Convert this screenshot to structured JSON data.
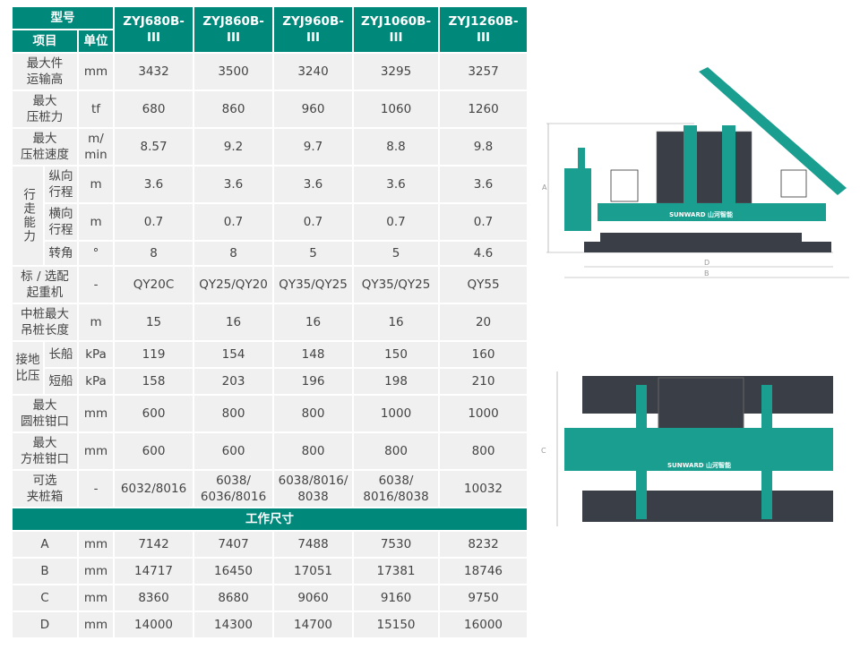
{
  "header": {
    "model_label": "型号",
    "item_label": "项目",
    "unit_label": "单位",
    "models": [
      "ZYJ680B- III",
      "ZYJ860B- III",
      "ZYJ960B- III",
      "ZYJ1060B- III",
      "ZYJ1260B- III"
    ]
  },
  "rows": [
    {
      "label": "最大件\n运输高",
      "unit": "mm",
      "values": [
        "3432",
        "3500",
        "3240",
        "3295",
        "3257"
      ]
    },
    {
      "label": "最大\n压桩力",
      "unit": "tf",
      "values": [
        "680",
        "860",
        "960",
        "1060",
        "1260"
      ]
    },
    {
      "label": "最大\n压桩速度",
      "unit": "m/\nmin",
      "values": [
        "8.57",
        "9.2",
        "9.7",
        "8.8",
        "9.8"
      ]
    }
  ],
  "travel": {
    "group": "行走能力",
    "rows": [
      {
        "label": "纵向\n行程",
        "unit": "m",
        "values": [
          "3.6",
          "3.6",
          "3.6",
          "3.6",
          "3.6"
        ]
      },
      {
        "label": "横向\n行程",
        "unit": "m",
        "values": [
          "0.7",
          "0.7",
          "0.7",
          "0.7",
          "0.7"
        ]
      },
      {
        "label": "转角",
        "unit": "°",
        "values": [
          "8",
          "8",
          "5",
          "5",
          "4.6"
        ]
      }
    ]
  },
  "rows2": [
    {
      "label": "标 / 选配\n起重机",
      "unit": "-",
      "values": [
        "QY20C",
        "QY25/QY20",
        "QY35/QY25",
        "QY35/QY25",
        "QY55"
      ]
    },
    {
      "label": "中桩最大\n吊桩长度",
      "unit": "m",
      "values": [
        "15",
        "16",
        "16",
        "16",
        "20"
      ]
    }
  ],
  "pressure": {
    "group": "接地\n比压",
    "rows": [
      {
        "label": "长船",
        "unit": "kPa",
        "values": [
          "119",
          "154",
          "148",
          "150",
          "160"
        ]
      },
      {
        "label": "短船",
        "unit": "kPa",
        "values": [
          "158",
          "203",
          "196",
          "198",
          "210"
        ]
      }
    ]
  },
  "rows3": [
    {
      "label": "最大\n圆桩钳口",
      "unit": "mm",
      "values": [
        "600",
        "800",
        "800",
        "1000",
        "1000"
      ]
    },
    {
      "label": "最大\n方桩钳口",
      "unit": "mm",
      "values": [
        "600",
        "600",
        "800",
        "800",
        "800"
      ]
    },
    {
      "label": "可选\n夹桩箱",
      "unit": "-",
      "values": [
        "6032/8016",
        "6038/\n6036/8016",
        "6038/8016/\n8038",
        "6038/\n8016/8038",
        "10032"
      ]
    }
  ],
  "dims": {
    "title": "工作尺寸",
    "rows": [
      {
        "label": "A",
        "unit": "mm",
        "values": [
          "7142",
          "7407",
          "7488",
          "7530",
          "8232"
        ]
      },
      {
        "label": "B",
        "unit": "mm",
        "values": [
          "14717",
          "16450",
          "17051",
          "17381",
          "18746"
        ]
      },
      {
        "label": "C",
        "unit": "mm",
        "values": [
          "8360",
          "8680",
          "9060",
          "9160",
          "9750"
        ]
      },
      {
        "label": "D",
        "unit": "mm",
        "values": [
          "14000",
          "14300",
          "14700",
          "15150",
          "16000"
        ]
      }
    ]
  },
  "drawing": {
    "brand": "SUNWARD山河智能",
    "dim_labels": [
      "A",
      "B",
      "C",
      "D"
    ]
  },
  "colors": {
    "header": "#00897b",
    "cell": "#f0f0f0",
    "machine": "#1a9e8f",
    "dark": "#3a3f47"
  }
}
